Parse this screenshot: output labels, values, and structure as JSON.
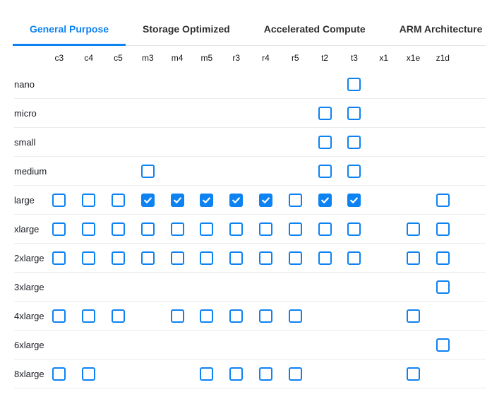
{
  "colors": {
    "accent": "#0d82f2",
    "tab_inactive": "#2f2f2f",
    "row_border": "#ececec",
    "tabbar_border": "#e4e4e4",
    "text": "#16191f"
  },
  "tabs": [
    {
      "label": "General Purpose",
      "active": true
    },
    {
      "label": "Storage Optimized",
      "active": false
    },
    {
      "label": "Accelerated Compute",
      "active": false
    },
    {
      "label": "ARM Architecture",
      "active": false
    }
  ],
  "matrix": {
    "columns": [
      "c3",
      "c4",
      "c5",
      "m3",
      "m4",
      "m5",
      "r3",
      "r4",
      "r5",
      "t2",
      "t3",
      "x1",
      "x1e",
      "z1d"
    ],
    "rows": [
      {
        "label": "nano",
        "boxes": {
          "t3": false
        }
      },
      {
        "label": "micro",
        "boxes": {
          "t2": false,
          "t3": false
        }
      },
      {
        "label": "small",
        "boxes": {
          "t2": false,
          "t3": false
        }
      },
      {
        "label": "medium",
        "boxes": {
          "m3": false,
          "t2": false,
          "t3": false
        }
      },
      {
        "label": "large",
        "boxes": {
          "c3": false,
          "c4": false,
          "c5": false,
          "m3": true,
          "m4": true,
          "m5": true,
          "r3": true,
          "r4": true,
          "r5": false,
          "t2": true,
          "t3": true,
          "z1d": false
        }
      },
      {
        "label": "xlarge",
        "boxes": {
          "c3": false,
          "c4": false,
          "c5": false,
          "m3": false,
          "m4": false,
          "m5": false,
          "r3": false,
          "r4": false,
          "r5": false,
          "t2": false,
          "t3": false,
          "x1e": false,
          "z1d": false
        }
      },
      {
        "label": "2xlarge",
        "boxes": {
          "c3": false,
          "c4": false,
          "c5": false,
          "m3": false,
          "m4": false,
          "m5": false,
          "r3": false,
          "r4": false,
          "r5": false,
          "t2": false,
          "t3": false,
          "x1e": false,
          "z1d": false
        }
      },
      {
        "label": "3xlarge",
        "boxes": {
          "z1d": false
        }
      },
      {
        "label": "4xlarge",
        "boxes": {
          "c3": false,
          "c4": false,
          "c5": false,
          "m4": false,
          "m5": false,
          "r3": false,
          "r4": false,
          "r5": false,
          "x1e": false
        }
      },
      {
        "label": "6xlarge",
        "boxes": {
          "z1d": false
        }
      },
      {
        "label": "8xlarge",
        "boxes": {
          "c3": false,
          "c4": false,
          "m5": false,
          "r3": false,
          "r4": false,
          "r5": false,
          "x1e": false
        }
      }
    ]
  }
}
